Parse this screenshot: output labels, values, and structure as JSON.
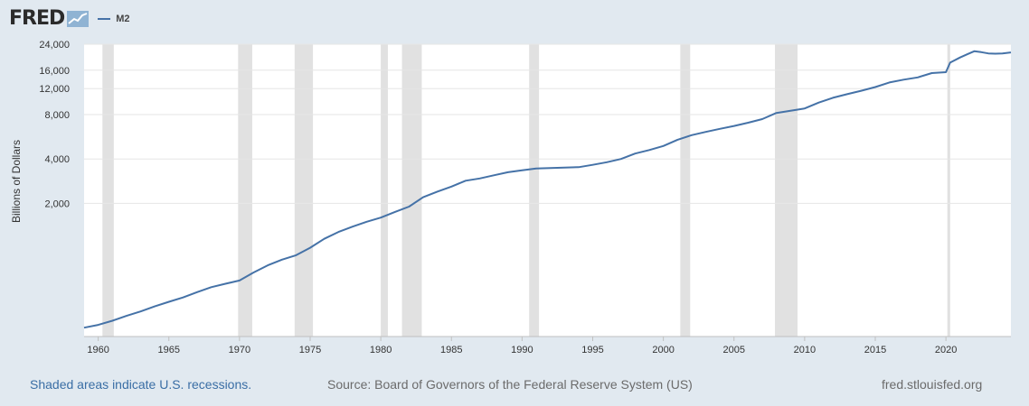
{
  "header": {
    "logo_text": "FRED",
    "logo_icon": "fred-chart-icon"
  },
  "legend": {
    "label": "M2",
    "color": "#4572a7"
  },
  "footer": {
    "recessions_note": "Shaded areas indicate U.S. recessions.",
    "source": "Source: Board of Governors of the Federal Reserve System (US)",
    "site": "fred.stlouisfed.org"
  },
  "colors": {
    "page_background": "#e1e9f0",
    "plot_background": "#ffffff",
    "recession_shade": "#e1e1e1",
    "gridline": "#e6e6e6",
    "series": "#4572a7",
    "footer_link": "#3a6ea5",
    "footer_text": "#6b6b6b"
  },
  "chart_data": {
    "type": "line",
    "title": "",
    "xlabel": "",
    "ylabel": "Billions of Dollars",
    "y_scale": "log",
    "xlim": [
      1959.0,
      2024.6
    ],
    "ylim": [
      250,
      24000
    ],
    "x_ticks": [
      1960,
      1965,
      1970,
      1975,
      1980,
      1985,
      1990,
      1995,
      2000,
      2005,
      2010,
      2015,
      2020
    ],
    "y_ticks": [
      {
        "value": 2000,
        "label": "2,000"
      },
      {
        "value": 4000,
        "label": "4,000"
      },
      {
        "value": 8000,
        "label": "8,000"
      },
      {
        "value": 12000,
        "label": "12,000"
      },
      {
        "value": 16000,
        "label": "16,000"
      },
      {
        "value": 24000,
        "label": "24,000"
      }
    ],
    "grid": true,
    "legend_position": "top-left",
    "recessions": [
      [
        1960.3,
        1961.1
      ],
      [
        1969.9,
        1970.9
      ],
      [
        1973.9,
        1975.2
      ],
      [
        1980.0,
        1980.5
      ],
      [
        1981.5,
        1982.9
      ],
      [
        1990.5,
        1991.2
      ],
      [
        2001.2,
        2001.9
      ],
      [
        2007.9,
        2009.5
      ],
      [
        2020.1,
        2020.3
      ]
    ],
    "series": [
      {
        "name": "M2",
        "x": [
          1959,
          1960,
          1961,
          1962,
          1963,
          1964,
          1965,
          1966,
          1967,
          1968,
          1969,
          1970,
          1971,
          1972,
          1973,
          1974,
          1975,
          1976,
          1977,
          1978,
          1979,
          1980,
          1981,
          1982,
          1983,
          1984,
          1985,
          1986,
          1987,
          1988,
          1989,
          1990,
          1991,
          1992,
          1993,
          1994,
          1995,
          1996,
          1997,
          1998,
          1999,
          2000,
          2001,
          2002,
          2003,
          2004,
          2005,
          2006,
          2007,
          2008,
          2009,
          2010,
          2011,
          2012,
          2013,
          2014,
          2015,
          2016,
          2017,
          2018,
          2019,
          2020.0,
          2020.3,
          2021,
          2021.5,
          2022,
          2022.5,
          2023,
          2023.5,
          2024,
          2024.6
        ],
        "values": [
          287,
          300,
          320,
          345,
          370,
          400,
          430,
          460,
          500,
          540,
          570,
          600,
          680,
          760,
          830,
          890,
          1000,
          1150,
          1280,
          1390,
          1500,
          1600,
          1750,
          1900,
          2200,
          2400,
          2600,
          2850,
          2950,
          3100,
          3250,
          3350,
          3450,
          3470,
          3500,
          3520,
          3650,
          3800,
          4000,
          4350,
          4600,
          4900,
          5400,
          5800,
          6100,
          6400,
          6700,
          7050,
          7450,
          8200,
          8500,
          8800,
          9650,
          10400,
          11000,
          11600,
          12300,
          13200,
          13800,
          14300,
          15300,
          15500,
          18000,
          19500,
          20500,
          21500,
          21200,
          20800,
          20700,
          20800,
          21100
        ]
      }
    ]
  }
}
